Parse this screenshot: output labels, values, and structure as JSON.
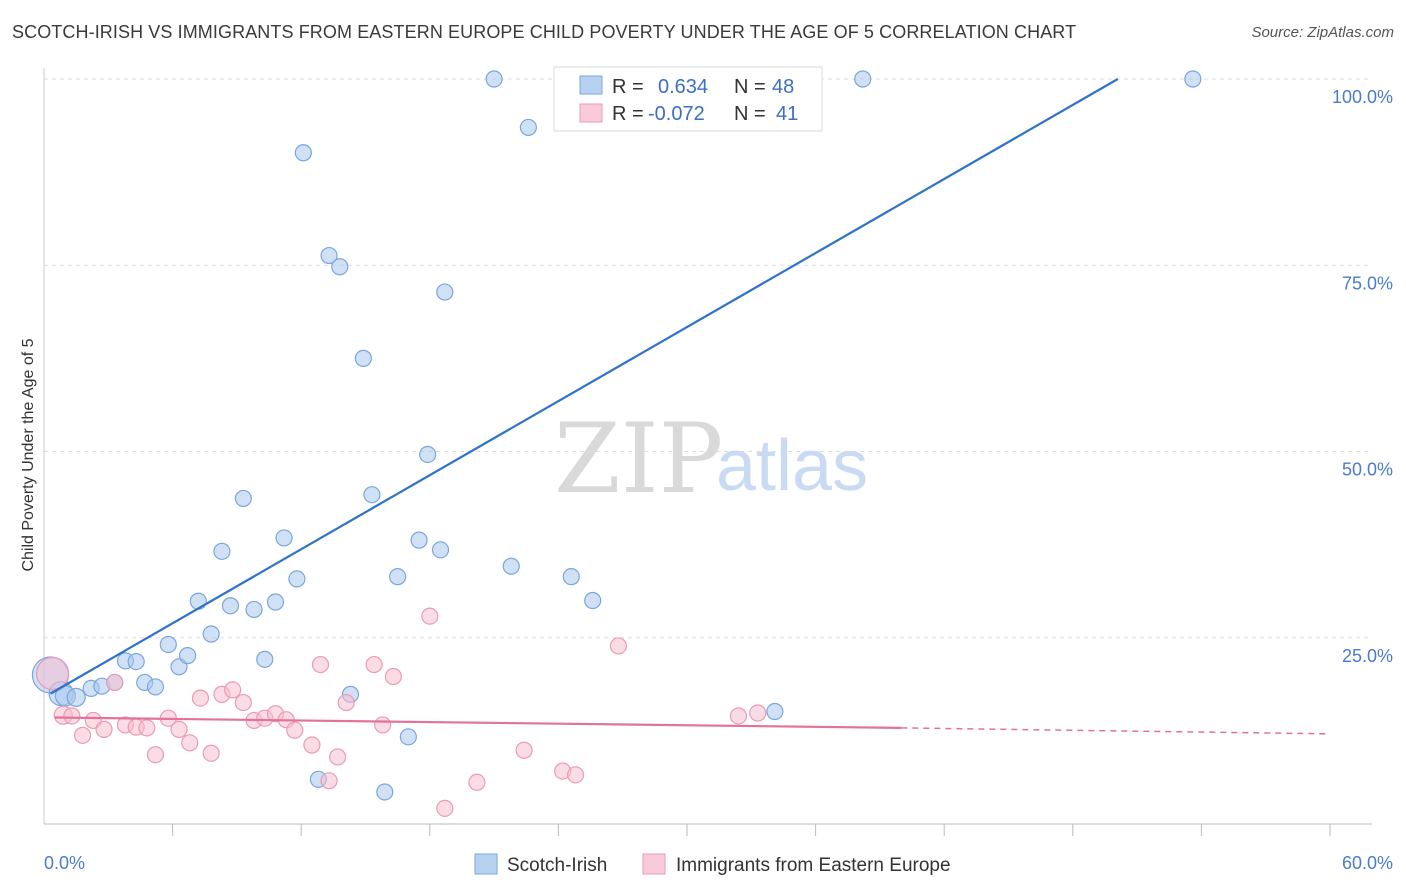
{
  "header": {
    "title": "SCOTCH-IRISH VS IMMIGRANTS FROM EASTERN EUROPE CHILD POVERTY UNDER THE AGE OF 5 CORRELATION CHART",
    "source": "Source: ZipAtlas.com"
  },
  "watermark": {
    "zip": "ZIP",
    "atlas": "atlas"
  },
  "legend": {
    "r_label": "R =",
    "n_label": "N =",
    "items": [
      {
        "r": "0.634",
        "n": "48"
      },
      {
        "r": "-0.072",
        "n": "41"
      }
    ]
  },
  "chart_data": {
    "type": "scatter",
    "title": "SCOTCH-IRISH VS IMMIGRANTS FROM EASTERN EUROPE CHILD POVERTY UNDER THE AGE OF 5 CORRELATION CHART",
    "xlabel": "",
    "ylabel": "Child Poverty Under the Age of 5",
    "xlim": [
      0,
      60
    ],
    "ylim": [
      0,
      102
    ],
    "x_tick_labels": [
      "0.0%",
      "60.0%"
    ],
    "y_ticks": [
      25,
      50,
      75,
      100
    ],
    "y_tick_labels": [
      "25.0%",
      "50.0%",
      "75.0%",
      "100.0%"
    ],
    "grid": true,
    "legend_position": "top-center",
    "series": [
      {
        "name": "Scotch-Irish",
        "color": "#a9c8ee",
        "stroke": "#7aa6dd",
        "line_color": "#2f72c9",
        "trend": {
          "x": [
            0.3,
            50.1
          ],
          "y": [
            17.5,
            100.0
          ],
          "dashed_from": null
        },
        "points": [
          [
            0.3,
            20.0,
            18
          ],
          [
            0.8,
            17.5,
            12
          ],
          [
            1.0,
            17.2,
            10
          ],
          [
            1.5,
            17.0,
            9
          ],
          [
            2.2,
            18.2,
            8
          ],
          [
            2.7,
            18.5,
            8
          ],
          [
            3.3,
            19.0,
            8
          ],
          [
            3.8,
            21.9,
            8
          ],
          [
            4.3,
            21.8,
            8
          ],
          [
            4.7,
            19.0,
            8
          ],
          [
            5.2,
            18.4,
            8
          ],
          [
            5.8,
            24.1,
            8
          ],
          [
            6.3,
            21.1,
            8
          ],
          [
            6.7,
            22.6,
            8
          ],
          [
            7.2,
            29.9,
            8
          ],
          [
            7.8,
            25.5,
            8
          ],
          [
            8.3,
            36.6,
            8
          ],
          [
            8.7,
            29.3,
            8
          ],
          [
            9.3,
            43.7,
            8
          ],
          [
            9.8,
            28.8,
            8
          ],
          [
            10.3,
            22.1,
            8
          ],
          [
            10.8,
            29.8,
            8
          ],
          [
            11.2,
            38.4,
            8
          ],
          [
            11.8,
            32.9,
            8
          ],
          [
            12.1,
            90.1,
            8
          ],
          [
            12.8,
            6.0,
            8
          ],
          [
            13.3,
            76.3,
            8
          ],
          [
            13.8,
            74.8,
            8
          ],
          [
            14.3,
            17.4,
            8
          ],
          [
            14.9,
            62.5,
            8
          ],
          [
            15.3,
            44.2,
            8
          ],
          [
            15.9,
            4.3,
            8
          ],
          [
            16.5,
            33.2,
            8
          ],
          [
            17.0,
            11.7,
            8
          ],
          [
            17.5,
            38.1,
            8
          ],
          [
            17.9,
            49.6,
            8
          ],
          [
            18.5,
            36.8,
            8
          ],
          [
            18.7,
            71.4,
            8
          ],
          [
            21.0,
            100.0,
            8
          ],
          [
            21.8,
            34.6,
            8
          ],
          [
            22.6,
            93.5,
            8
          ],
          [
            24.6,
            33.2,
            8
          ],
          [
            25.6,
            30.0,
            8
          ],
          [
            34.1,
            15.1,
            8
          ],
          [
            38.2,
            100.0,
            8
          ],
          [
            53.6,
            100.0,
            8
          ]
        ]
      },
      {
        "name": "Immigrants from Eastern Europe",
        "color": "#f6bfd0",
        "stroke": "#ec9ab5",
        "line_color": "#e3729b",
        "trend": {
          "x": [
            0.5,
            40.0,
            60.0
          ],
          "y": [
            14.3,
            12.9,
            12.1
          ],
          "dashed_from": 40.0
        },
        "points": [
          [
            0.4,
            20.2,
            16
          ],
          [
            0.9,
            14.6,
            9
          ],
          [
            1.3,
            14.5,
            8
          ],
          [
            1.8,
            11.9,
            8
          ],
          [
            2.3,
            13.9,
            8
          ],
          [
            2.8,
            12.7,
            8
          ],
          [
            3.3,
            19.0,
            8
          ],
          [
            3.8,
            13.3,
            8
          ],
          [
            4.3,
            13.0,
            8
          ],
          [
            4.8,
            12.9,
            8
          ],
          [
            5.2,
            9.3,
            8
          ],
          [
            5.8,
            14.2,
            8
          ],
          [
            6.3,
            12.7,
            8
          ],
          [
            6.8,
            10.9,
            8
          ],
          [
            7.3,
            16.9,
            8
          ],
          [
            7.8,
            9.5,
            8
          ],
          [
            8.3,
            17.4,
            8
          ],
          [
            8.8,
            18.0,
            8
          ],
          [
            9.3,
            16.3,
            8
          ],
          [
            9.8,
            13.9,
            8
          ],
          [
            10.3,
            14.2,
            8
          ],
          [
            10.8,
            14.8,
            8
          ],
          [
            11.3,
            14.0,
            8
          ],
          [
            11.7,
            12.6,
            8
          ],
          [
            12.5,
            10.6,
            8
          ],
          [
            12.9,
            21.4,
            8
          ],
          [
            13.3,
            5.8,
            8
          ],
          [
            13.7,
            9.0,
            8
          ],
          [
            14.1,
            16.3,
            8
          ],
          [
            15.4,
            21.4,
            8
          ],
          [
            15.8,
            13.3,
            8
          ],
          [
            16.3,
            19.8,
            8
          ],
          [
            18.0,
            27.9,
            8
          ],
          [
            18.7,
            2.1,
            8
          ],
          [
            20.2,
            5.6,
            8
          ],
          [
            22.4,
            9.9,
            8
          ],
          [
            24.2,
            7.1,
            8
          ],
          [
            24.8,
            6.6,
            8
          ],
          [
            26.8,
            23.9,
            8
          ],
          [
            32.4,
            14.5,
            8
          ],
          [
            33.3,
            14.9,
            8
          ]
        ]
      }
    ]
  }
}
